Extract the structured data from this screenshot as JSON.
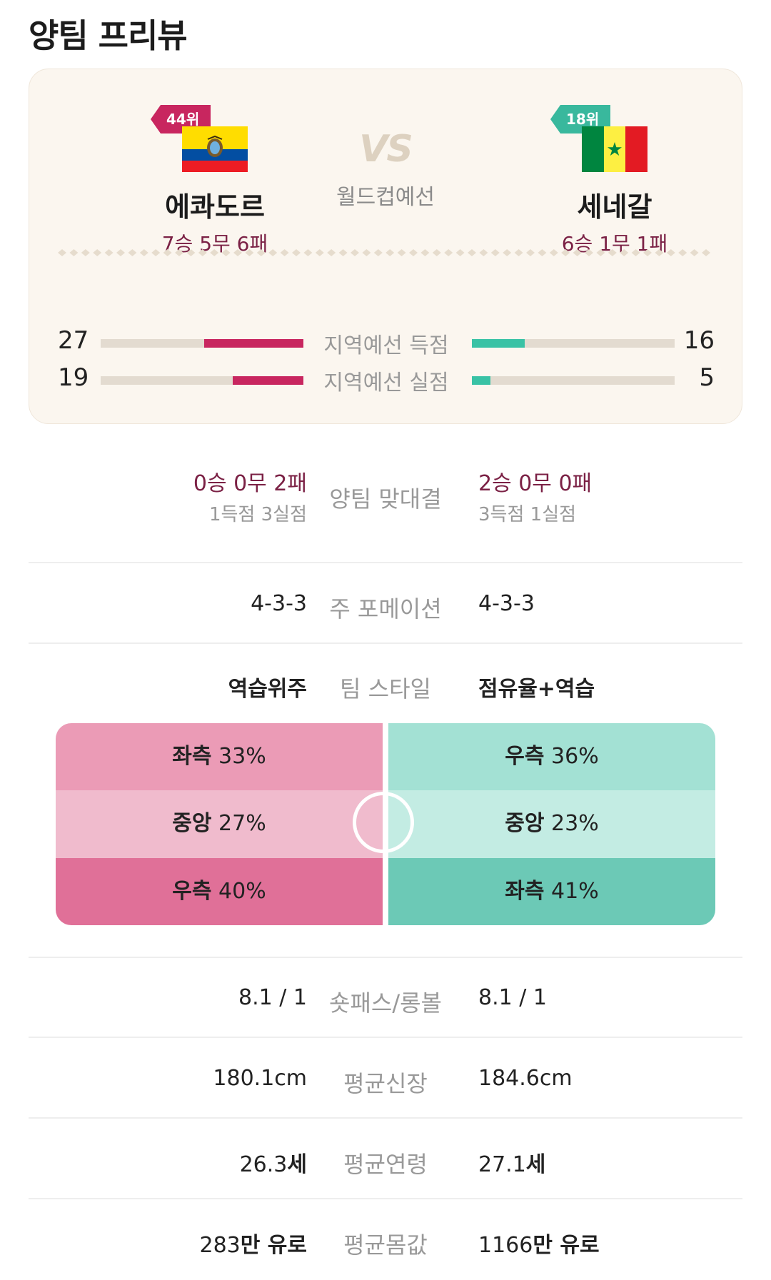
{
  "title": "양팀 프리뷰",
  "match": {
    "vs": "VS",
    "competition": "월드컵예선",
    "home": {
      "rank": "44위",
      "name": "에콰도르",
      "record": "7승 5무 6패",
      "flag": "ecuador-flag-icon"
    },
    "away": {
      "rank": "18위",
      "name": "세네갈",
      "record": "6승 1무 1패",
      "flag": "senegal-flag-icon"
    }
  },
  "regional": [
    {
      "label": "지역예선 득점",
      "home": "27",
      "away": "16",
      "home_ratio": 0.49,
      "away_ratio": 0.26
    },
    {
      "label": "지역예선 실점",
      "home": "19",
      "away": "5",
      "home_ratio": 0.35,
      "away_ratio": 0.09
    }
  ],
  "h2h": {
    "label": "양팀 맞대결",
    "home_record": "0승 0무 2패",
    "home_goals": "1득점 3실점",
    "away_record": "2승 0무 0패",
    "away_goals": "3득점 1실점"
  },
  "formation": {
    "label": "주 포메이션",
    "home": "4-3-3",
    "away": "4-3-3"
  },
  "style": {
    "label": "팀 스타일",
    "home": "역습위주",
    "away": "점유율+역습"
  },
  "attack": {
    "home": [
      {
        "side": "좌측",
        "pct": "33%"
      },
      {
        "side": "중앙",
        "pct": "27%"
      },
      {
        "side": "우측",
        "pct": "40%"
      }
    ],
    "away": [
      {
        "side": "우측",
        "pct": "36%"
      },
      {
        "side": "중앙",
        "pct": "23%"
      },
      {
        "side": "좌측",
        "pct": "41%"
      }
    ]
  },
  "stats": [
    {
      "label": "숏패스/롱볼",
      "home": "8.1 / 1",
      "away": "8.1 / 1"
    },
    {
      "label": "평균신장",
      "home": "180.1cm",
      "away": "184.6cm"
    },
    {
      "label": "평균연령",
      "home_num": "26.3",
      "home_unit": "세",
      "away_num": "27.1",
      "away_unit": "세"
    },
    {
      "label": "평균몸값",
      "home_num": "283",
      "home_unit": "만 유로",
      "away_num": "1166",
      "away_unit": "만 유로"
    }
  ],
  "colors": {
    "home_accent": "#c8265f",
    "away_accent": "#39c2a5",
    "home_zones": [
      "#eb9bb6",
      "#f0bbcd",
      "#e07098"
    ],
    "away_zones": [
      "#a3e1d4",
      "#c3ece3",
      "#6cc9b6"
    ]
  }
}
